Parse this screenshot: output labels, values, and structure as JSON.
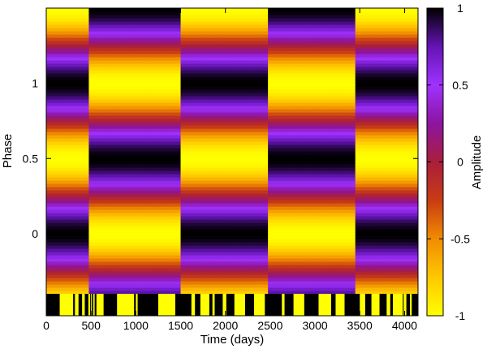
{
  "chart_data": {
    "type": "heatmap",
    "xlabel": "Time (days)",
    "ylabel": "Phase",
    "colorbar_label": "Amplitude",
    "xlim": [
      0,
      4150
    ],
    "ylim": [
      -0.4,
      1.5
    ],
    "x_ticks": [
      0,
      500,
      1000,
      1500,
      2000,
      2500,
      3000,
      3500,
      4000
    ],
    "x_tick_labels": [
      "0",
      "500",
      "1000",
      "1500",
      "2000",
      "2500",
      "3000",
      "3500",
      "4000"
    ],
    "y_ticks": [
      0,
      0.5,
      1
    ],
    "y_tick_labels": [
      "0",
      "0.5",
      "1"
    ],
    "colorbar_range": [
      -1,
      1
    ],
    "colorbar_ticks": [
      1,
      0.5,
      0,
      -0.5,
      -1
    ],
    "colorbar_tick_labels": [
      "1",
      "0.5",
      "0",
      "-0.5",
      "-1"
    ],
    "colormap": [
      "#ffff00",
      "#ffc800",
      "#f08c00",
      "#c83c14",
      "#aa1e3c",
      "#8c14a0",
      "#a032ff",
      "#6414b4",
      "#000000"
    ],
    "field": {
      "model": "amplitude = cos(2*pi*(phase - phi(t)))",
      "phi_segments": [
        {
          "t_start": 0,
          "t_end": 480,
          "phi": 0.0
        },
        {
          "t_start": 480,
          "t_end": 1490,
          "phi": 0.5
        },
        {
          "t_start": 1490,
          "t_end": 2470,
          "phi": 0.0
        },
        {
          "t_start": 2470,
          "t_end": 3460,
          "phi": 0.5
        },
        {
          "t_start": 3460,
          "t_end": 4150,
          "phi": 0.0
        }
      ]
    },
    "observation_coverage": [
      [
        150,
        300
      ],
      [
        320,
        360
      ],
      [
        400,
        430
      ],
      [
        470,
        490
      ],
      [
        500,
        510
      ],
      [
        525,
        540
      ],
      [
        560,
        640
      ],
      [
        790,
        980
      ],
      [
        1000,
        1020
      ],
      [
        1250,
        1440
      ],
      [
        1620,
        1660
      ],
      [
        1720,
        1820
      ],
      [
        1855,
        1880
      ],
      [
        1970,
        2010
      ],
      [
        2100,
        2220
      ],
      [
        2320,
        2440
      ],
      [
        2630,
        2660
      ],
      [
        2760,
        2880
      ],
      [
        3040,
        3180
      ],
      [
        3230,
        3330
      ],
      [
        3500,
        3560
      ],
      [
        3630,
        3720
      ],
      [
        3800,
        3840
      ],
      [
        3870,
        3980
      ],
      [
        3990,
        4020
      ],
      [
        4060,
        4080
      ]
    ]
  }
}
